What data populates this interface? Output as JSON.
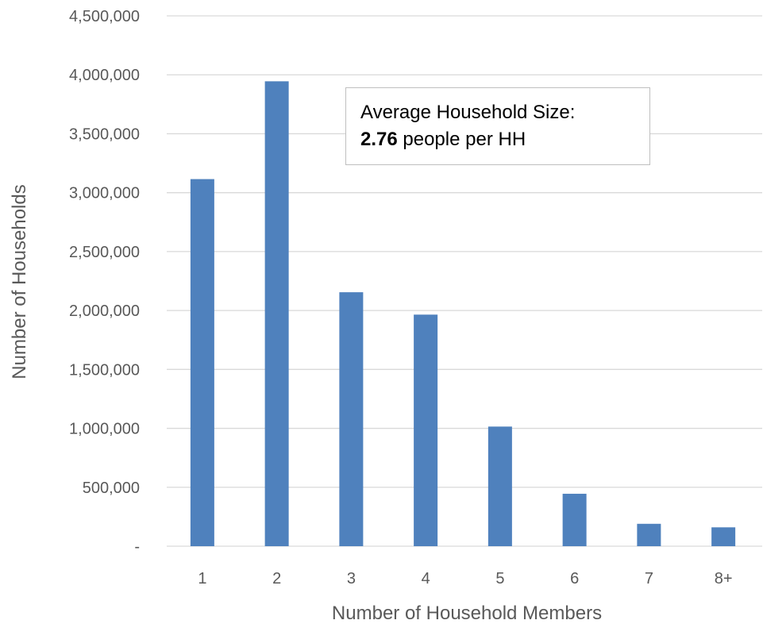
{
  "chart_data": {
    "type": "bar",
    "categories": [
      "1",
      "2",
      "3",
      "4",
      "5",
      "6",
      "7",
      "8+"
    ],
    "values": [
      3115000,
      3945000,
      2155000,
      1965000,
      1015000,
      445000,
      190000,
      160000
    ],
    "title": "",
    "xlabel": "Number of Household Members",
    "ylabel": "Number of Households",
    "ylim": [
      0,
      4500000
    ],
    "yticks": [
      "-",
      "500,000",
      "1,000,000",
      "1,500,000",
      "2,000,000",
      "2,500,000",
      "3,000,000",
      "3,500,000",
      "4,000,000",
      "4,500,000"
    ],
    "grid": true,
    "legend": "none",
    "bar_color": "#4f81bd",
    "grid_color": "#d9d9d9",
    "annotation": {
      "line1": "Average Household Size:",
      "value": "2.76",
      "line2_suffix": " people per HH"
    }
  }
}
